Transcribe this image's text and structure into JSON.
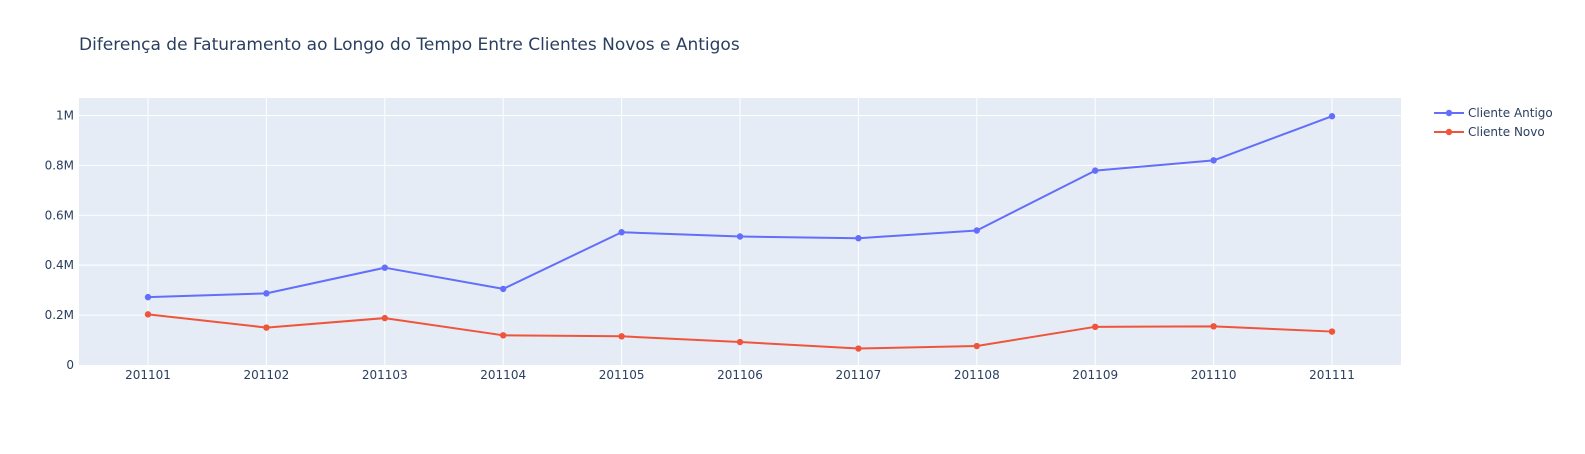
{
  "chart_data": {
    "type": "line",
    "title": "Diferença de Faturamento ao Longo do Tempo Entre Clientes Novos e Antigos",
    "xlabel": "",
    "ylabel": "",
    "categories": [
      "201101",
      "201102",
      "201103",
      "201104",
      "201105",
      "201106",
      "201107",
      "201108",
      "201109",
      "201110",
      "201111"
    ],
    "ylim": [
      0,
      1070000
    ],
    "yticks": [
      {
        "value": 0,
        "label": "0"
      },
      {
        "value": 200000,
        "label": "0.2M"
      },
      {
        "value": 400000,
        "label": "0.4M"
      },
      {
        "value": 600000,
        "label": "0.6M"
      },
      {
        "value": 800000,
        "label": "0.8M"
      },
      {
        "value": 1000000,
        "label": "1M"
      }
    ],
    "grid": true,
    "legend_position": "top-right",
    "series": [
      {
        "name": "Cliente Antigo",
        "color": "#636efa",
        "values": [
          272000,
          287000,
          390000,
          305000,
          532000,
          515000,
          508000,
          539000,
          779000,
          820000,
          997000
        ]
      },
      {
        "name": "Cliente Novo",
        "color": "#ef553b",
        "values": [
          203000,
          150000,
          188000,
          119000,
          115000,
          92000,
          66000,
          76000,
          153000,
          155000,
          134000
        ]
      }
    ],
    "colors": {
      "plot_bg": "#e5ecf6",
      "grid": "#ffffff",
      "text": "#2a3f5f",
      "title": "#2a3f5f"
    }
  }
}
